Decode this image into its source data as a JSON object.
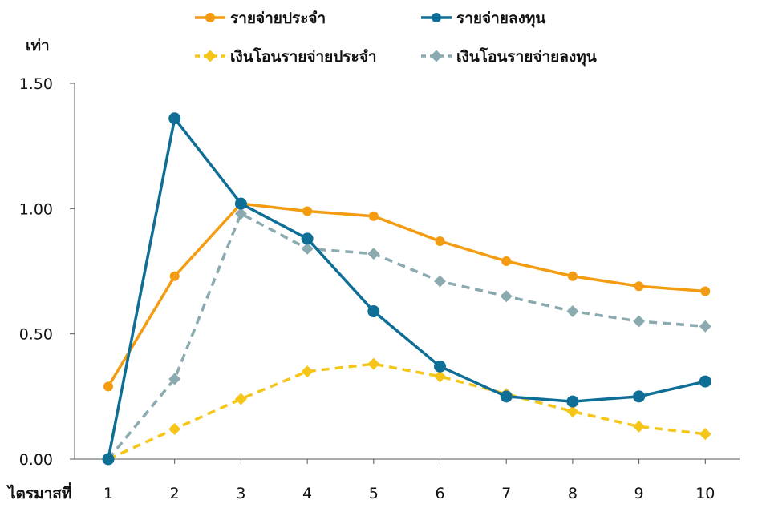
{
  "chart_data": {
    "type": "line",
    "ylabel": "เท่า",
    "xlabel": "ไตรมาสที่",
    "categories": [
      "1",
      "2",
      "3",
      "4",
      "5",
      "6",
      "7",
      "8",
      "9",
      "10"
    ],
    "ylim": [
      0,
      1.5
    ],
    "yticks": [
      "0.00",
      "0.50",
      "1.00",
      "1.50"
    ],
    "grid": false,
    "legend_position": "top",
    "series": [
      {
        "name": "รายจ่ายประจำ",
        "color": "#F39C12",
        "style": "solid",
        "marker": "circle",
        "values": [
          0.29,
          0.73,
          1.02,
          0.99,
          0.97,
          0.87,
          0.79,
          0.73,
          0.69,
          0.67
        ]
      },
      {
        "name": "รายจ่ายลงทุน",
        "color": "#0E6E96",
        "style": "solid",
        "marker": "circle",
        "values": [
          0.0,
          1.36,
          1.02,
          0.88,
          0.59,
          0.37,
          0.25,
          0.23,
          0.25,
          0.31
        ]
      },
      {
        "name": "เงินโอนรายจ่ายประจำ",
        "color": "#F5C518",
        "style": "dashed",
        "marker": "diamond",
        "values": [
          0.0,
          0.12,
          0.24,
          0.35,
          0.38,
          0.33,
          0.26,
          0.19,
          0.13,
          0.1
        ]
      },
      {
        "name": "เงินโอนรายจ่ายลงทุน",
        "color": "#8AAAB0",
        "style": "dashed",
        "marker": "diamond",
        "values": [
          0.0,
          0.32,
          0.98,
          0.84,
          0.82,
          0.71,
          0.65,
          0.59,
          0.55,
          0.53
        ]
      }
    ]
  }
}
